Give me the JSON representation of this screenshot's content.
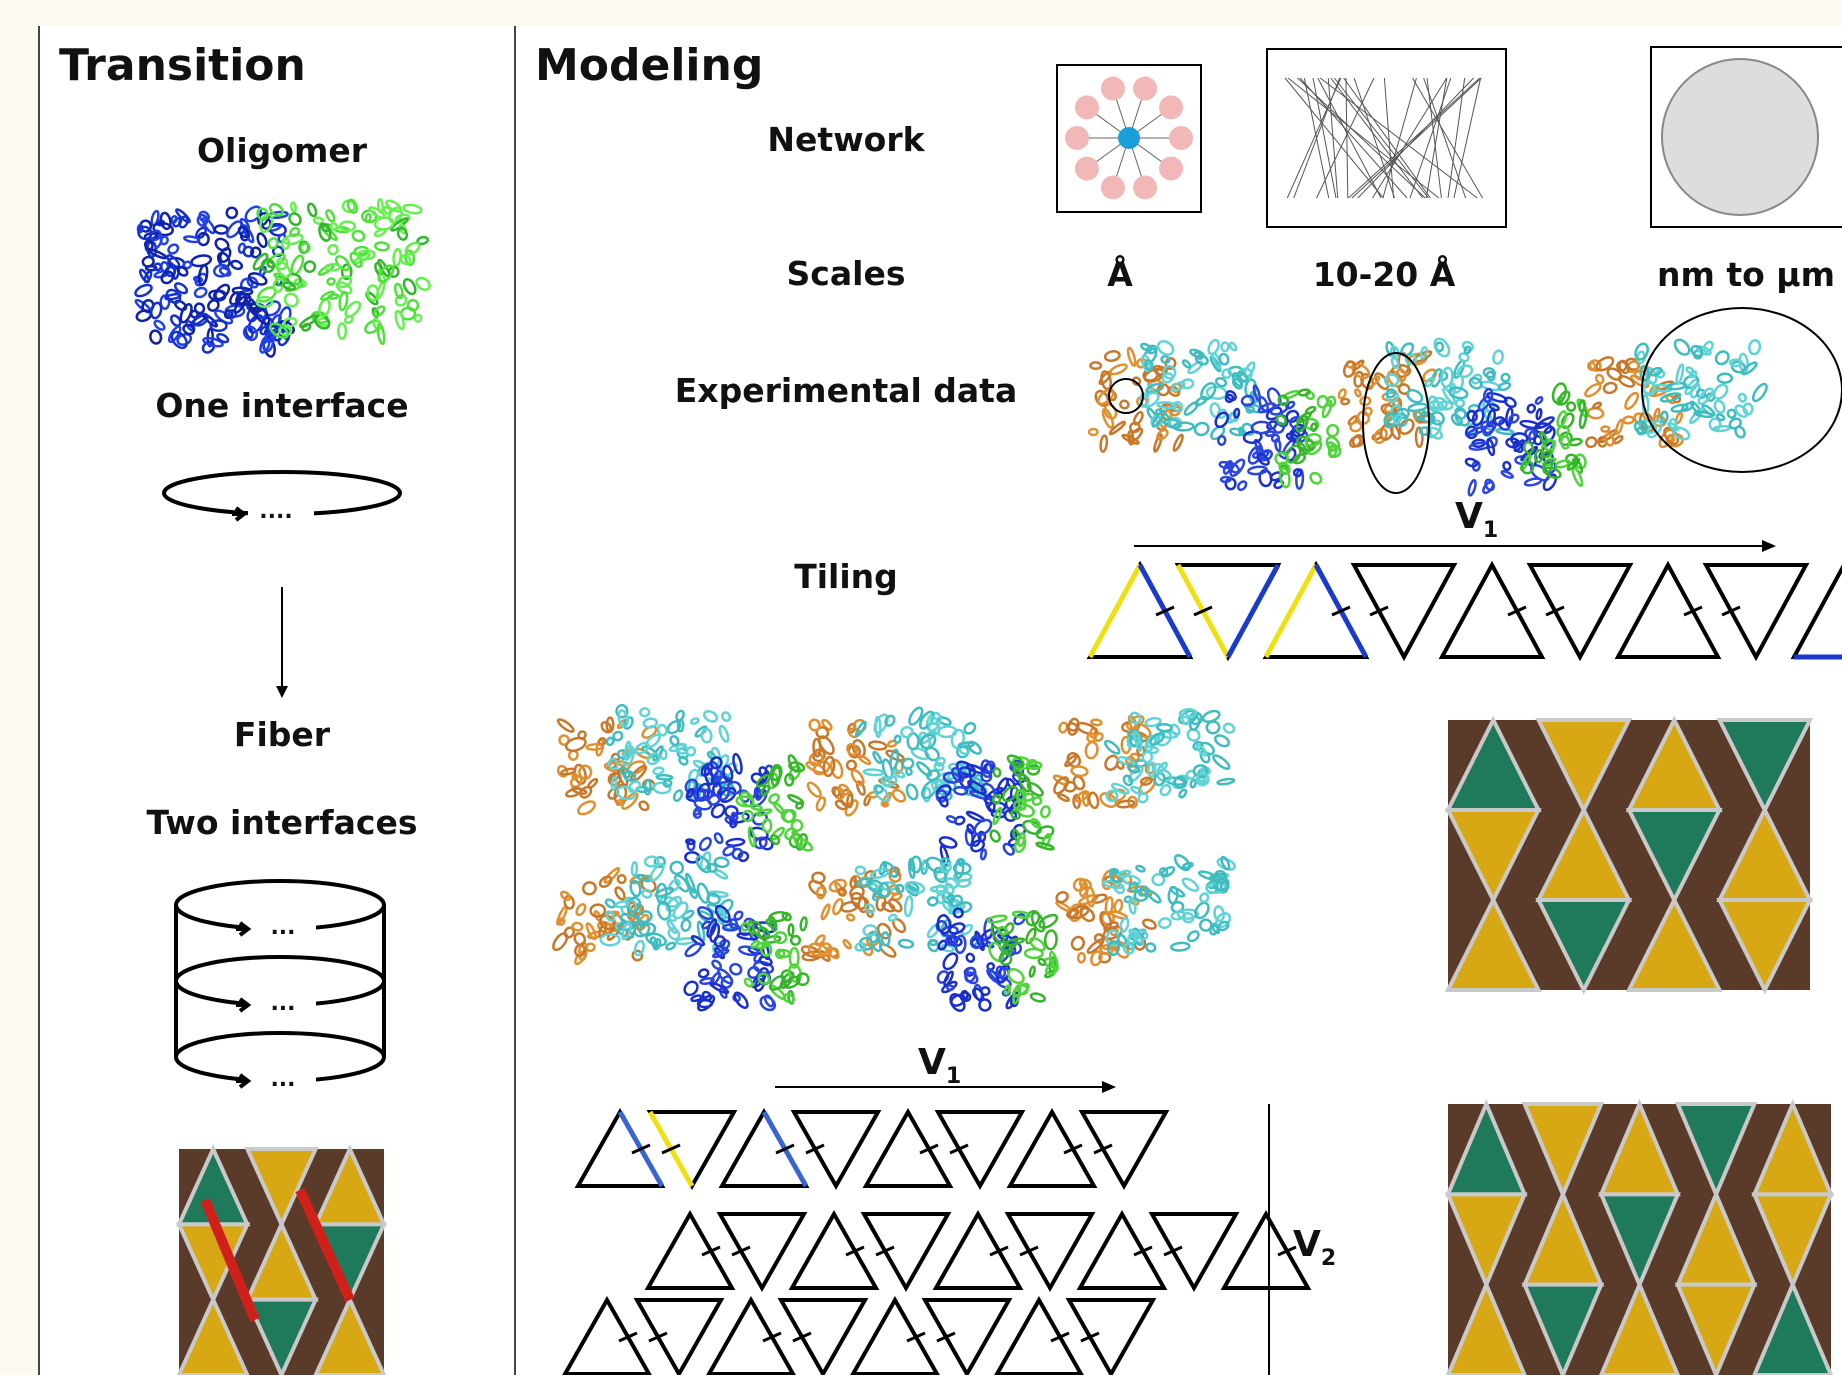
{
  "transition": {
    "title": "Transition",
    "oligomer": "Oligomer",
    "one_interface": "One interface",
    "ring_dots": "....",
    "fiber": "Fiber",
    "two_interfaces": "Two interfaces",
    "cylinder_dots": "..."
  },
  "modeling": {
    "title": "Modeling",
    "rows": {
      "network": "Network",
      "scales": "Scales",
      "experimental_data": "Experimental data",
      "tiling": "Tiling"
    },
    "scales": [
      "Å",
      "10-20 Å",
      "nm to µm"
    ],
    "v1": {
      "letter": "V",
      "sub": "1"
    },
    "v2": {
      "letter": "V",
      "sub": "2"
    }
  }
}
